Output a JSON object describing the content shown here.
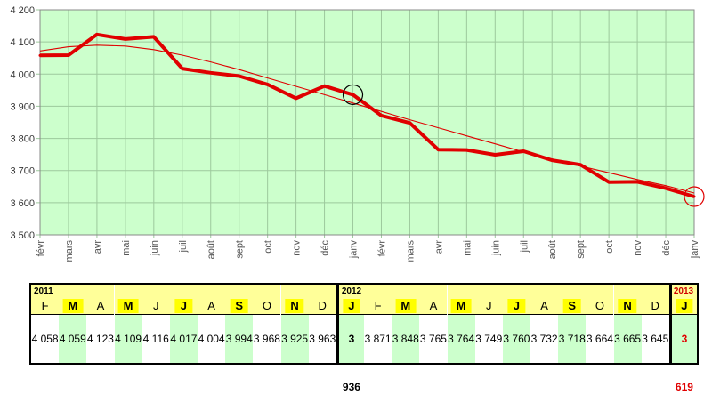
{
  "chart_data": {
    "type": "line",
    "y_ticks": [
      "3 500",
      "3 600",
      "3 700",
      "3 800",
      "3 900",
      "4 000",
      "4 100",
      "4 200"
    ],
    "ylim": [
      3500,
      4200
    ],
    "x_labels": [
      "févr",
      "mars",
      "avr",
      "mai",
      "juin",
      "juil",
      "août",
      "sept",
      "oct",
      "nov",
      "déc",
      "janv",
      "févr",
      "mars",
      "avr",
      "mai",
      "juin",
      "juil",
      "août",
      "sept",
      "oct",
      "nov",
      "déc",
      "janv"
    ],
    "values": [
      4058,
      4059,
      4123,
      4109,
      4116,
      4017,
      4004,
      3994,
      3968,
      3925,
      3963,
      3936,
      3871,
      3848,
      3765,
      3764,
      3749,
      3760,
      3732,
      3718,
      3664,
      3665,
      3645,
      3619
    ],
    "trend": [
      4072,
      4085,
      4090,
      4087,
      4076,
      4059,
      4038,
      4014,
      3988,
      3962,
      3936,
      3910,
      3884,
      3858,
      3833,
      3808,
      3783,
      3758,
      3736,
      3714,
      3693,
      3672,
      3653,
      3630
    ],
    "grid": true,
    "background_color": "#ccffcc",
    "line_color": "#e00000",
    "highlight_indices": [
      11,
      23
    ]
  },
  "table": {
    "columns": [
      {
        "year": "2011",
        "month": "F",
        "value": "4 058"
      },
      {
        "month": "M",
        "value": "4 059"
      },
      {
        "month": "A",
        "value": "4 123"
      },
      {
        "month": "M",
        "value": "4 109"
      },
      {
        "month": "J",
        "value": "4 116"
      },
      {
        "month": "J",
        "value": "4 017"
      },
      {
        "month": "A",
        "value": "4 004"
      },
      {
        "month": "S",
        "value": "3 994"
      },
      {
        "month": "O",
        "value": "3 968"
      },
      {
        "month": "N",
        "value": "3 925"
      },
      {
        "month": "D",
        "value": "3 963"
      },
      {
        "year": "2012",
        "month": "J",
        "value": "3 936"
      },
      {
        "month": "F",
        "value": "3 871"
      },
      {
        "month": "M",
        "value": "3 848"
      },
      {
        "month": "A",
        "value": "3 765"
      },
      {
        "month": "M",
        "value": "3 764"
      },
      {
        "month": "J",
        "value": "3 749"
      },
      {
        "month": "J",
        "value": "3 760"
      },
      {
        "month": "A",
        "value": "3 732"
      },
      {
        "month": "S",
        "value": "3 718"
      },
      {
        "month": "O",
        "value": "3 664"
      },
      {
        "month": "N",
        "value": "3 665"
      },
      {
        "month": "D",
        "value": "3 645"
      },
      {
        "year": "2013",
        "month": "J",
        "value": "3 619"
      }
    ]
  }
}
